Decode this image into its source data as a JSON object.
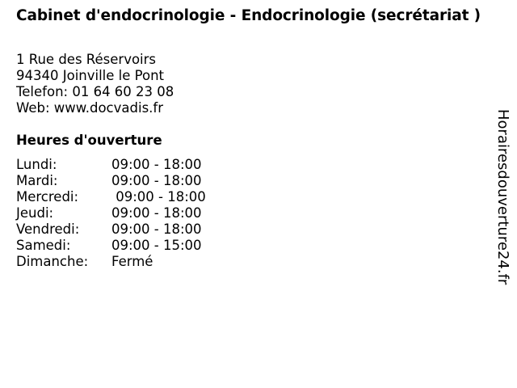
{
  "title": "Cabinet d'endocrinologie - Endocrinologie (secrétariat )",
  "address": {
    "street": "1 Rue des Réservoirs",
    "city": "94340 Joinville le Pont",
    "phone": "Telefon: 01 64 60 23 08",
    "web": "Web: www.docvadis.fr"
  },
  "hours_heading": "Heures d'ouverture",
  "hours": [
    {
      "day": "Lundi:",
      "time": "09:00 - 18:00"
    },
    {
      "day": "Mardi:",
      "time": "09:00 - 18:00"
    },
    {
      "day": "Mercredi:",
      "time": " 09:00 - 18:00"
    },
    {
      "day": "Jeudi:",
      "time": "09:00 - 18:00"
    },
    {
      "day": "Vendredi:",
      "time": "09:00 - 18:00"
    },
    {
      "day": "Samedi:",
      "time": "09:00 - 15:00"
    },
    {
      "day": "Dimanche:",
      "time": "Fermé"
    }
  ],
  "watermark": "Horairesdouverture24.fr"
}
